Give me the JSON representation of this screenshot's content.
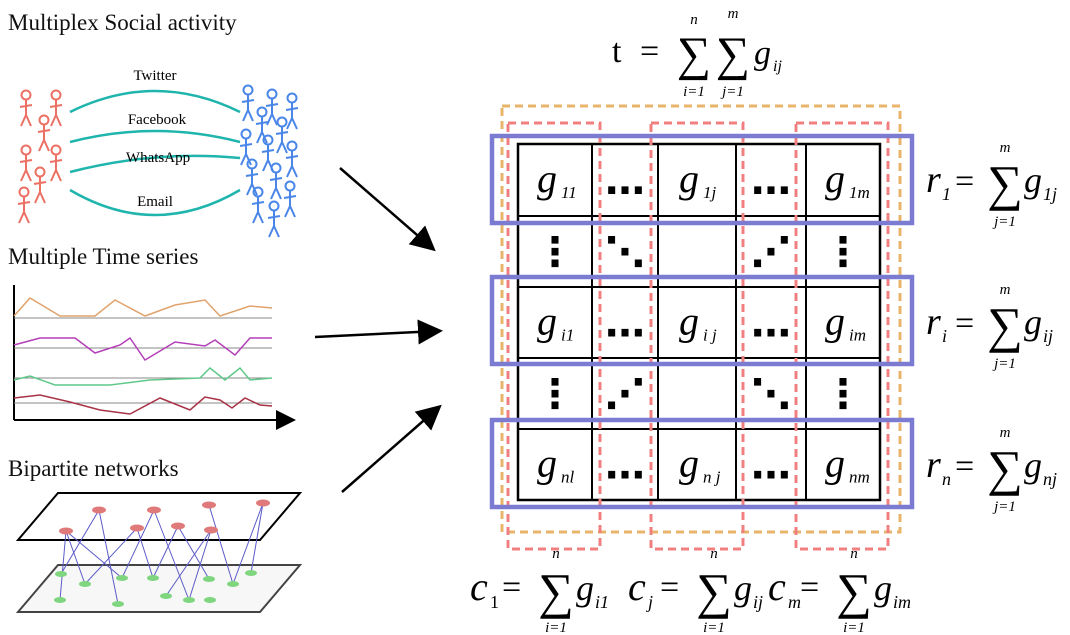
{
  "panels": {
    "social": {
      "title": "Multiplex Social activity",
      "layers": [
        "Twitter",
        "Facebook",
        "WhatsApp",
        "Email"
      ]
    },
    "timeseries": {
      "title": "Multiple Time series"
    },
    "bipartite": {
      "title": "Bipartite networks"
    }
  },
  "matrix": {
    "rows": [
      [
        {
          "b": "g",
          "s": "11"
        },
        {
          "b": "…",
          "s": ""
        },
        {
          "b": "g",
          "s": "1j"
        },
        {
          "b": "…",
          "s": ""
        },
        {
          "b": "g",
          "s": "1m"
        }
      ],
      [
        {
          "b": "⋮",
          "s": ""
        },
        {
          "b": "⋱",
          "s": ""
        },
        {
          "b": "",
          "s": ""
        },
        {
          "b": "⋰",
          "s": ""
        },
        {
          "b": "⋮",
          "s": ""
        }
      ],
      [
        {
          "b": "g",
          "s": "i1"
        },
        {
          "b": "…",
          "s": ""
        },
        {
          "b": "g",
          "s": "i j"
        },
        {
          "b": "…",
          "s": ""
        },
        {
          "b": "g",
          "s": "im"
        }
      ],
      [
        {
          "b": "⋮",
          "s": ""
        },
        {
          "b": "⋰",
          "s": ""
        },
        {
          "b": "",
          "s": ""
        },
        {
          "b": "⋱",
          "s": ""
        },
        {
          "b": "⋮",
          "s": ""
        }
      ],
      [
        {
          "b": "g",
          "s": "nl"
        },
        {
          "b": "…",
          "s": ""
        },
        {
          "b": "g",
          "s": "n j"
        },
        {
          "b": "…",
          "s": ""
        },
        {
          "b": "g",
          "s": "nm"
        }
      ]
    ]
  },
  "formulas": {
    "total": {
      "lhs": "t",
      "sum1_top": "n",
      "sum1_bot": "i=1",
      "sum2_top": "m",
      "sum2_bot": "j=1",
      "term": "g",
      "sub": "ij"
    },
    "row_sums": [
      {
        "lhs": "r",
        "lhs_sub": "1",
        "top": "m",
        "bot": "j=1",
        "term": "g",
        "sub": "1j"
      },
      {
        "lhs": "r",
        "lhs_sub": "i",
        "top": "m",
        "bot": "j=1",
        "term": "g",
        "sub": "ij"
      },
      {
        "lhs": "r",
        "lhs_sub": "n",
        "top": "m",
        "bot": "j=1",
        "term": "g",
        "sub": "nj"
      }
    ],
    "col_sums": [
      {
        "lhs": "c",
        "lhs_sub": "1",
        "top": "n",
        "bot": "i=1",
        "term": "g",
        "sub": "i1"
      },
      {
        "lhs": "c",
        "lhs_sub": "j",
        "top": "n",
        "bot": "i=1",
        "term": "g",
        "sub": "ij"
      },
      {
        "lhs": "c",
        "lhs_sub": "m",
        "top": "n",
        "bot": "i=1",
        "term": "g",
        "sub": "im"
      }
    ]
  },
  "colors": {
    "people_left": "#ec7063",
    "people_right": "#4a86e8",
    "links": "#1fb5ad",
    "row_box": "#7b7bd1",
    "col_box": "#f08080",
    "outer_box": "#e8b46a",
    "series": [
      "#e0a36c",
      "#b33fb8",
      "#5fc98a",
      "#a83246"
    ]
  }
}
